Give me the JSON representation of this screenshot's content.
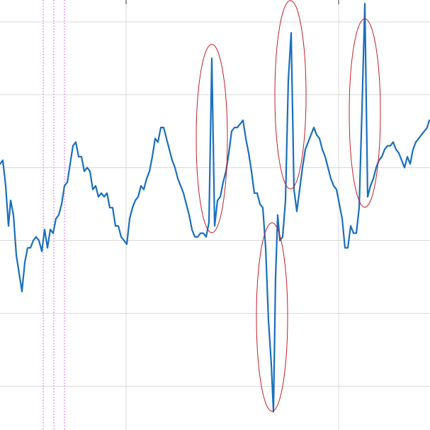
{
  "chart_data": {
    "type": "line",
    "title": "",
    "xlabel": "",
    "ylabel": "",
    "grid": true,
    "legend": "none",
    "xlim": [
      0,
      606
    ],
    "ylim": [
      -3.0,
      2.9
    ],
    "colors": {
      "line": "#1a6fbd",
      "anomaly_ellipse": "#c0202a",
      "marker_lines": "#e070e0",
      "grid": "#d9d9d9"
    },
    "gridlines_x": [
      178,
      478
    ],
    "gridlines_y": [
      -2.4,
      -1.4,
      -0.4,
      0.6,
      1.6,
      2.6
    ],
    "marker_lines_x": [
      61,
      76,
      91
    ],
    "series": [
      {
        "points": [
          [
            0,
            0.65
          ],
          [
            4,
            0.7
          ],
          [
            8,
            0.35
          ],
          [
            12,
            -0.2
          ],
          [
            15,
            0.15
          ],
          [
            19,
            -0.05
          ],
          [
            23,
            -0.6
          ],
          [
            27,
            -0.85
          ],
          [
            31,
            -1.1
          ],
          [
            35,
            -0.7
          ],
          [
            39,
            -0.5
          ],
          [
            43,
            -0.5
          ],
          [
            47,
            -0.4
          ],
          [
            51,
            -0.35
          ],
          [
            55,
            -0.4
          ],
          [
            59,
            -0.55
          ],
          [
            63,
            -0.25
          ],
          [
            67,
            -0.5
          ],
          [
            71,
            -0.25
          ],
          [
            75,
            -0.3
          ],
          [
            79,
            -0.1
          ],
          [
            83,
            -0.05
          ],
          [
            87,
            0.1
          ],
          [
            91,
            0.35
          ],
          [
            95,
            0.4
          ],
          [
            99,
            0.65
          ],
          [
            103,
            0.9
          ],
          [
            107,
            0.95
          ],
          [
            111,
            0.75
          ],
          [
            115,
            0.75
          ],
          [
            119,
            0.55
          ],
          [
            123,
            0.6
          ],
          [
            127,
            0.55
          ],
          [
            131,
            0.3
          ],
          [
            135,
            0.35
          ],
          [
            139,
            0.2
          ],
          [
            143,
            0.25
          ],
          [
            147,
            0.2
          ],
          [
            151,
            0.25
          ],
          [
            155,
            0.05
          ],
          [
            159,
            0.05
          ],
          [
            163,
            -0.2
          ],
          [
            167,
            -0.2
          ],
          [
            171,
            -0.35
          ],
          [
            175,
            -0.4
          ],
          [
            179,
            -0.45
          ],
          [
            183,
            -0.1
          ],
          [
            187,
            0.05
          ],
          [
            191,
            0.15
          ],
          [
            195,
            0.2
          ],
          [
            199,
            0.35
          ],
          [
            203,
            0.3
          ],
          [
            207,
            0.45
          ],
          [
            211,
            0.55
          ],
          [
            215,
            0.75
          ],
          [
            219,
            1.0
          ],
          [
            223,
            0.95
          ],
          [
            227,
            1.15
          ],
          [
            231,
            1.15
          ],
          [
            235,
            1.0
          ],
          [
            239,
            0.85
          ],
          [
            243,
            0.7
          ],
          [
            247,
            0.6
          ],
          [
            251,
            0.45
          ],
          [
            255,
            0.35
          ],
          [
            259,
            0.25
          ],
          [
            263,
            0.1
          ],
          [
            267,
            -0.05
          ],
          [
            271,
            -0.25
          ],
          [
            275,
            -0.35
          ],
          [
            279,
            -0.35
          ],
          [
            283,
            -0.3
          ],
          [
            287,
            -0.3
          ],
          [
            291,
            -0.35
          ],
          [
            295,
            -0.15
          ],
          [
            299,
            2.1
          ],
          [
            303,
            -0.2
          ],
          [
            307,
            0.15
          ],
          [
            311,
            0.2
          ],
          [
            315,
            0.4
          ],
          [
            319,
            0.55
          ],
          [
            323,
            0.8
          ],
          [
            327,
            1.1
          ],
          [
            331,
            1.15
          ],
          [
            335,
            1.15
          ],
          [
            339,
            1.2
          ],
          [
            343,
            1.25
          ],
          [
            347,
            1.0
          ],
          [
            351,
            0.8
          ],
          [
            355,
            0.55
          ],
          [
            359,
            0.25
          ],
          [
            363,
            0.25
          ],
          [
            367,
            0.1
          ],
          [
            371,
            0.05
          ],
          [
            375,
            -0.5
          ],
          [
            379,
            -1.5
          ],
          [
            383,
            -2.1
          ],
          [
            386,
            -2.75
          ],
          [
            389,
            -0.9
          ],
          [
            392,
            -0.05
          ],
          [
            395,
            -0.4
          ],
          [
            399,
            -0.35
          ],
          [
            403,
            0.15
          ],
          [
            407,
            1.8
          ],
          [
            411,
            2.45
          ],
          [
            415,
            0.3
          ],
          [
            419,
            0.0
          ],
          [
            423,
            0.3
          ],
          [
            427,
            0.6
          ],
          [
            431,
            0.85
          ],
          [
            435,
            0.95
          ],
          [
            439,
            1.05
          ],
          [
            443,
            1.15
          ],
          [
            447,
            1.05
          ],
          [
            451,
            1.0
          ],
          [
            455,
            0.85
          ],
          [
            459,
            0.75
          ],
          [
            463,
            0.6
          ],
          [
            467,
            0.45
          ],
          [
            471,
            0.35
          ],
          [
            475,
            0.3
          ],
          [
            479,
            0.1
          ],
          [
            483,
            -0.1
          ],
          [
            487,
            -0.5
          ],
          [
            491,
            -0.5
          ],
          [
            495,
            -0.2
          ],
          [
            499,
            -0.3
          ],
          [
            503,
            -0.3
          ],
          [
            507,
            0.05
          ],
          [
            511,
            1.4
          ],
          [
            515,
            2.85
          ],
          [
            519,
            0.2
          ],
          [
            523,
            0.35
          ],
          [
            527,
            0.45
          ],
          [
            531,
            0.6
          ],
          [
            535,
            0.7
          ],
          [
            539,
            0.75
          ],
          [
            543,
            0.85
          ],
          [
            547,
            0.9
          ],
          [
            551,
            0.9
          ],
          [
            555,
            0.95
          ],
          [
            559,
            0.85
          ],
          [
            563,
            0.8
          ],
          [
            567,
            0.7
          ],
          [
            571,
            0.6
          ],
          [
            575,
            0.75
          ],
          [
            579,
            0.65
          ],
          [
            583,
            0.85
          ],
          [
            587,
            0.95
          ],
          [
            591,
            1.0
          ],
          [
            595,
            1.05
          ],
          [
            599,
            1.1
          ],
          [
            603,
            1.15
          ],
          [
            606,
            1.25
          ]
        ]
      }
    ],
    "anomalies": [
      {
        "x": 299,
        "y": 1.0
      },
      {
        "x": 410,
        "y": 1.6
      },
      {
        "x": 515,
        "y": 1.35
      },
      {
        "x": 384,
        "y": -1.45
      }
    ]
  }
}
